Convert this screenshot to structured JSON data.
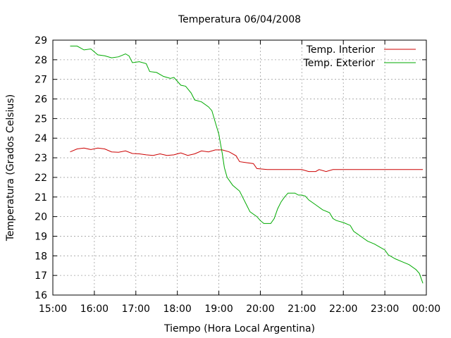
{
  "chart_data": {
    "type": "line",
    "title": "Temperatura 06/04/2008",
    "xlabel": "Tiempo (Hora Local Argentina)",
    "ylabel": "Temperatura (Grados Celsius)",
    "xlim": [
      "15:00",
      "00:00"
    ],
    "ylim": [
      16,
      29
    ],
    "x_ticks": [
      "15:00",
      "16:00",
      "17:00",
      "18:00",
      "19:00",
      "20:00",
      "21:00",
      "22:00",
      "23:00",
      "00:00"
    ],
    "y_ticks": [
      16,
      17,
      18,
      19,
      20,
      21,
      22,
      23,
      24,
      25,
      26,
      27,
      28,
      29
    ],
    "grid": true,
    "legend_position": "top-right",
    "series": [
      {
        "name": "Temp. Interior",
        "color": "#cc0000",
        "points": [
          [
            "15:25",
            23.3
          ],
          [
            "15:35",
            23.45
          ],
          [
            "15:45",
            23.5
          ],
          [
            "15:55",
            23.42
          ],
          [
            "16:05",
            23.5
          ],
          [
            "16:15",
            23.45
          ],
          [
            "16:25",
            23.3
          ],
          [
            "16:35",
            23.28
          ],
          [
            "16:45",
            23.35
          ],
          [
            "16:55",
            23.22
          ],
          [
            "17:05",
            23.2
          ],
          [
            "17:15",
            23.15
          ],
          [
            "17:25",
            23.12
          ],
          [
            "17:35",
            23.2
          ],
          [
            "17:45",
            23.12
          ],
          [
            "17:55",
            23.15
          ],
          [
            "18:05",
            23.25
          ],
          [
            "18:15",
            23.12
          ],
          [
            "18:25",
            23.2
          ],
          [
            "18:35",
            23.35
          ],
          [
            "18:45",
            23.3
          ],
          [
            "18:55",
            23.4
          ],
          [
            "19:05",
            23.4
          ],
          [
            "19:15",
            23.3
          ],
          [
            "19:25",
            23.1
          ],
          [
            "19:30",
            22.8
          ],
          [
            "19:40",
            22.75
          ],
          [
            "19:50",
            22.7
          ],
          [
            "19:55",
            22.45
          ],
          [
            "20:10",
            22.4
          ],
          [
            "20:30",
            22.4
          ],
          [
            "20:50",
            22.4
          ],
          [
            "21:00",
            22.4
          ],
          [
            "21:10",
            22.3
          ],
          [
            "21:20",
            22.3
          ],
          [
            "21:25",
            22.4
          ],
          [
            "21:35",
            22.3
          ],
          [
            "21:45",
            22.4
          ],
          [
            "22:00",
            22.4
          ],
          [
            "22:30",
            22.4
          ],
          [
            "23:00",
            22.4
          ],
          [
            "23:30",
            22.4
          ],
          [
            "23:55",
            22.4
          ]
        ]
      },
      {
        "name": "Temp. Exterior",
        "color": "#00aa00",
        "points": [
          [
            "15:25",
            28.7
          ],
          [
            "15:35",
            28.7
          ],
          [
            "15:45",
            28.5
          ],
          [
            "15:55",
            28.55
          ],
          [
            "16:05",
            28.25
          ],
          [
            "16:15",
            28.2
          ],
          [
            "16:25",
            28.1
          ],
          [
            "16:35",
            28.15
          ],
          [
            "16:45",
            28.3
          ],
          [
            "16:50",
            28.2
          ],
          [
            "16:55",
            27.85
          ],
          [
            "17:05",
            27.9
          ],
          [
            "17:15",
            27.8
          ],
          [
            "17:20",
            27.4
          ],
          [
            "17:30",
            27.35
          ],
          [
            "17:40",
            27.15
          ],
          [
            "17:50",
            27.05
          ],
          [
            "17:55",
            27.1
          ],
          [
            "18:05",
            26.7
          ],
          [
            "18:12",
            26.65
          ],
          [
            "18:20",
            26.3
          ],
          [
            "18:25",
            25.95
          ],
          [
            "18:35",
            25.85
          ],
          [
            "18:45",
            25.6
          ],
          [
            "18:50",
            25.4
          ],
          [
            "18:55",
            24.8
          ],
          [
            "19:00",
            24.2
          ],
          [
            "19:02",
            23.8
          ],
          [
            "19:05",
            23.2
          ],
          [
            "19:08",
            22.5
          ],
          [
            "19:12",
            22.0
          ],
          [
            "19:20",
            21.6
          ],
          [
            "19:30",
            21.3
          ],
          [
            "19:35",
            20.95
          ],
          [
            "19:40",
            20.6
          ],
          [
            "19:45",
            20.25
          ],
          [
            "19:55",
            20.0
          ],
          [
            "20:00",
            19.8
          ],
          [
            "20:05",
            19.65
          ],
          [
            "20:15",
            19.65
          ],
          [
            "20:20",
            19.9
          ],
          [
            "20:25",
            20.4
          ],
          [
            "20:30",
            20.75
          ],
          [
            "20:35",
            21.0
          ],
          [
            "20:40",
            21.2
          ],
          [
            "20:50",
            21.2
          ],
          [
            "20:55",
            21.1
          ],
          [
            "21:00",
            21.1
          ],
          [
            "21:05",
            21.05
          ],
          [
            "21:10",
            20.85
          ],
          [
            "21:20",
            20.6
          ],
          [
            "21:30",
            20.35
          ],
          [
            "21:40",
            20.2
          ],
          [
            "21:45",
            19.9
          ],
          [
            "21:50",
            19.8
          ],
          [
            "22:00",
            19.7
          ],
          [
            "22:10",
            19.55
          ],
          [
            "22:15",
            19.25
          ],
          [
            "22:25",
            19.0
          ],
          [
            "22:35",
            18.75
          ],
          [
            "22:45",
            18.6
          ],
          [
            "22:55",
            18.4
          ],
          [
            "23:00",
            18.3
          ],
          [
            "23:05",
            18.05
          ],
          [
            "23:15",
            17.85
          ],
          [
            "23:25",
            17.7
          ],
          [
            "23:35",
            17.55
          ],
          [
            "23:45",
            17.3
          ],
          [
            "23:50",
            17.1
          ],
          [
            "23:55",
            16.6
          ]
        ]
      }
    ]
  }
}
